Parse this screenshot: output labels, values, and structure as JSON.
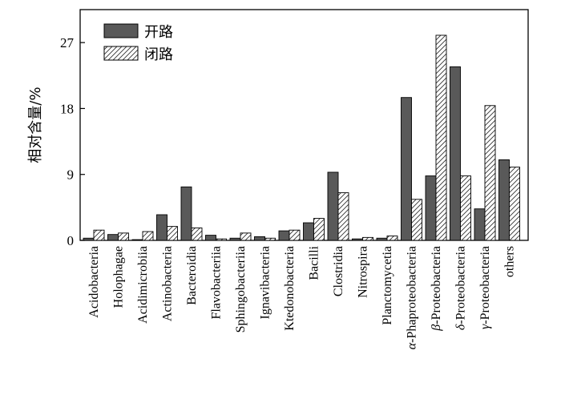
{
  "chart_data": {
    "type": "bar",
    "ylabel": "相对含量/%",
    "xlabel": "",
    "ylim": [
      0,
      31.5
    ],
    "yticks": [
      0,
      9,
      18,
      27
    ],
    "ytick_labels": [
      "0",
      "9",
      "18",
      "27"
    ],
    "legend_position": "top-left",
    "categories": [
      "Acidobacteria",
      "Holophagae",
      "Acidimicrobiia",
      "Actinobacteria",
      "Bacteroidia",
      "Flavobacteriia",
      "Sphingobacteriia",
      "Ignavibacteria",
      "Ktedonobacteria",
      "Bacilli",
      "Clostridia",
      "Nitrospira",
      "Planctomycetia",
      "α-Phaproteobacteria",
      "β-Proteobacteria",
      "δ-Proteobacteria",
      "γ-Proteobacteria",
      "others"
    ],
    "series": [
      {
        "name": "开路",
        "color": "#595959",
        "values": [
          0.3,
          0.8,
          0.1,
          3.5,
          7.3,
          0.7,
          0.3,
          0.5,
          1.3,
          2.4,
          9.3,
          0.2,
          0.3,
          19.5,
          8.8,
          23.7,
          4.3,
          11.0
        ]
      },
      {
        "name": "闭路",
        "color": "#ffffff",
        "pattern": "diagonal-hatch",
        "values": [
          1.4,
          1.0,
          1.2,
          1.9,
          1.7,
          0.2,
          1.0,
          0.3,
          1.4,
          3.0,
          6.5,
          0.4,
          0.6,
          5.6,
          28.0,
          8.8,
          18.4,
          10.0
        ]
      }
    ]
  }
}
